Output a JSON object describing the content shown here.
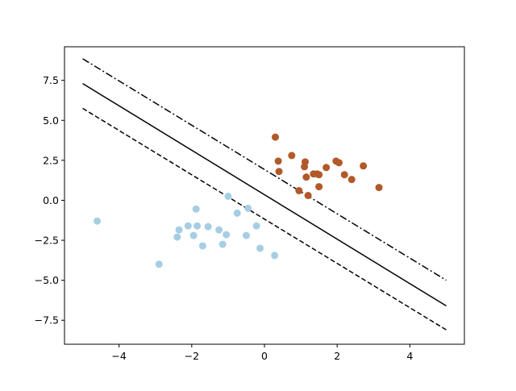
{
  "chart_data": {
    "type": "scatter",
    "title": "",
    "xlabel": "",
    "ylabel": "",
    "xlim": [
      -5.5,
      5.5
    ],
    "ylim": [
      -9.0,
      9.6
    ],
    "grid": false,
    "xticks": [
      -4,
      -2,
      0,
      2,
      4
    ],
    "xtick_labels": [
      "−4",
      "−2",
      "0",
      "2",
      "4"
    ],
    "yticks": [
      -7.5,
      -5.0,
      -2.5,
      0.0,
      2.5,
      5.0,
      7.5
    ],
    "ytick_labels": [
      "−7.5",
      "−5.0",
      "−2.5",
      "0.0",
      "2.5",
      "5.0",
      "7.5"
    ],
    "series": [
      {
        "color": "#a6cee3",
        "points": [
          [
            -4.6,
            -1.3
          ],
          [
            -2.9,
            -4.0
          ],
          [
            -2.35,
            -1.85
          ],
          [
            -2.4,
            -2.3
          ],
          [
            -2.1,
            -1.6
          ],
          [
            -1.95,
            -2.2
          ],
          [
            -1.85,
            -1.6
          ],
          [
            -1.88,
            -0.55
          ],
          [
            -1.7,
            -2.85
          ],
          [
            -1.55,
            -1.65
          ],
          [
            -1.25,
            -1.85
          ],
          [
            -1.15,
            -2.75
          ],
          [
            -1.05,
            -2.15
          ],
          [
            -1.0,
            0.25
          ],
          [
            -0.75,
            -0.8
          ],
          [
            -0.5,
            -2.2
          ],
          [
            -0.45,
            -0.5
          ],
          [
            -0.22,
            -1.6
          ],
          [
            -0.12,
            -3.0
          ],
          [
            0.28,
            -3.45
          ]
        ]
      },
      {
        "color": "#b15928",
        "points": [
          [
            0.3,
            3.95
          ],
          [
            0.38,
            2.45
          ],
          [
            0.4,
            1.8
          ],
          [
            0.75,
            2.8
          ],
          [
            0.95,
            0.6
          ],
          [
            1.1,
            2.1
          ],
          [
            1.12,
            2.4
          ],
          [
            1.15,
            1.45
          ],
          [
            1.2,
            0.3
          ],
          [
            1.35,
            1.65
          ],
          [
            1.45,
            1.65
          ],
          [
            1.5,
            1.6
          ],
          [
            1.5,
            0.85
          ],
          [
            1.7,
            2.05
          ],
          [
            1.97,
            2.45
          ],
          [
            2.05,
            2.35
          ],
          [
            2.2,
            1.6
          ],
          [
            2.4,
            1.3
          ],
          [
            2.72,
            2.15
          ],
          [
            3.15,
            0.8
          ]
        ]
      }
    ],
    "lines": [
      {
        "style": "solid",
        "points": [
          [
            -5,
            7.3
          ],
          [
            5,
            -6.6
          ]
        ]
      },
      {
        "style": "dashed",
        "points": [
          [
            -5,
            5.75
          ],
          [
            5,
            -8.1
          ]
        ]
      },
      {
        "style": "dashdot",
        "points": [
          [
            -5,
            8.85
          ],
          [
            5,
            -5.0
          ]
        ]
      }
    ]
  }
}
